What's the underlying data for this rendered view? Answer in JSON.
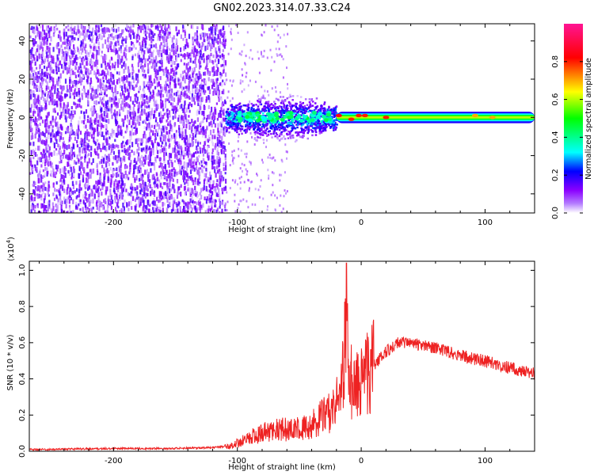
{
  "title": "GN02.2023.314.07.33.C24",
  "chart_data": [
    {
      "type": "heatmap",
      "xlabel": "Height of straight line (km)",
      "ylabel": "Frequency (Hz)",
      "xlim": [
        -268,
        140
      ],
      "ylim": [
        -50,
        49
      ],
      "xticks": [
        -200,
        -100,
        0,
        100
      ],
      "yticks": [
        -40,
        -20,
        0,
        20,
        40
      ],
      "colorbar": {
        "label": "Normalized spectral amplitude",
        "range": [
          0.0,
          1.0
        ],
        "ticks": [
          "0.0",
          "0.2",
          "0.4",
          "0.6",
          "0.8"
        ],
        "colors": [
          "#ffffff",
          "#8b00ff",
          "#0000ff",
          "#00ffff",
          "#00ff00",
          "#ffff00",
          "#ff0000",
          "#ff1493"
        ]
      },
      "regions": [
        {
          "x": [
            -268,
            -110
          ],
          "freq": [
            -50,
            49
          ],
          "amplitude": 0.08,
          "pattern": "scattered noise"
        },
        {
          "x": [
            -110,
            -20
          ],
          "freq": [
            -12,
            12
          ],
          "amplitude": 0.25,
          "pattern": "broadband burst"
        },
        {
          "x": [
            -20,
            140
          ],
          "freq": [
            -3,
            3
          ],
          "amplitude": 0.45,
          "pattern": "narrow band near 0 Hz"
        }
      ],
      "peaks": [
        {
          "x": -18,
          "freq": 1,
          "amplitude": 0.85
        },
        {
          "x": -8,
          "freq": -1,
          "amplitude": 0.8
        },
        {
          "x": -2,
          "freq": 1,
          "amplitude": 0.8
        },
        {
          "x": 3,
          "freq": 1,
          "amplitude": 0.8
        },
        {
          "x": 20,
          "freq": 0,
          "amplitude": 0.8
        },
        {
          "x": 92,
          "freq": 1,
          "amplitude": 0.7
        },
        {
          "x": 106,
          "freq": 0,
          "amplitude": 0.7
        }
      ]
    },
    {
      "type": "line",
      "xlabel": "Height of straight line (km)",
      "ylabel": "SNR (10 * v/v)",
      "yscale_label": "(x10",
      "yscale_exponent": "4",
      "xlim": [
        -268,
        140
      ],
      "ylim": [
        0.0,
        1.05
      ],
      "xticks": [
        -200,
        -100,
        0,
        100
      ],
      "yticks": [
        "0.0",
        "0.2",
        "0.4",
        "0.6",
        "0.8",
        "1.0"
      ],
      "color": "#ee2222",
      "series": [
        {
          "x": [
            -268,
            -240,
            -200,
            -160,
            -120,
            -105,
            -95,
            -85,
            -75,
            -65,
            -55,
            -45,
            -35,
            -25,
            -18,
            -14,
            -12,
            -10,
            -6,
            0,
            10,
            20,
            30,
            40,
            50,
            60,
            70,
            80,
            90,
            100,
            110,
            120,
            130,
            140
          ],
          "values": [
            0.01,
            0.012,
            0.015,
            0.015,
            0.02,
            0.03,
            0.06,
            0.09,
            0.11,
            0.12,
            0.12,
            0.13,
            0.17,
            0.22,
            0.28,
            0.5,
            0.9,
            0.42,
            0.35,
            0.38,
            0.47,
            0.55,
            0.6,
            0.6,
            0.58,
            0.57,
            0.55,
            0.53,
            0.51,
            0.5,
            0.48,
            0.46,
            0.44,
            0.43
          ]
        }
      ]
    }
  ]
}
